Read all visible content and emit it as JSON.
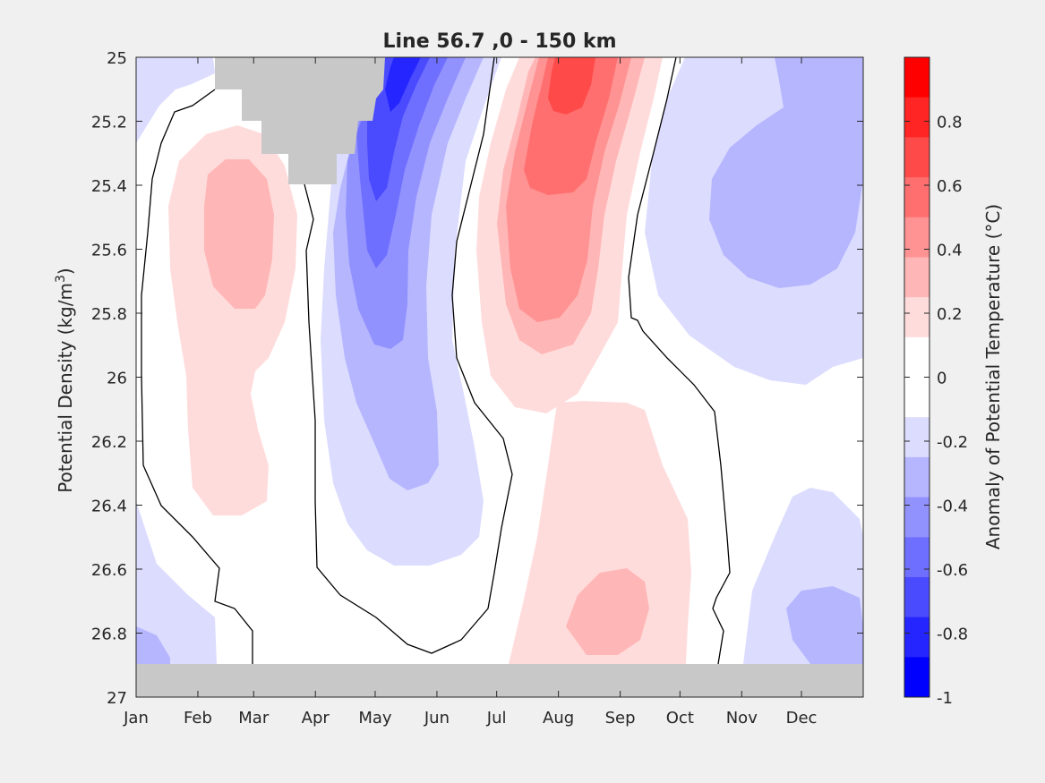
{
  "chart_data": {
    "type": "heatmap",
    "subtype": "filled-contour",
    "title": "Line 56.7 ,0 - 150 km",
    "ylabel_main": "Potential Density (kg/m",
    "ylabel_sup": "3",
    "ylabel_end": ")",
    "colorbar_label": "Anomaly of Potential Temperature (°C)",
    "x_ticks": [
      "Jan",
      "Feb",
      "Mar",
      "Apr",
      "May",
      "Jun",
      "Jul",
      "Aug",
      "Sep",
      "Oct",
      "Nov",
      "Dec"
    ],
    "y_ticks": [
      "25",
      "25.2",
      "25.4",
      "25.6",
      "25.8",
      "26",
      "26.2",
      "26.4",
      "26.6",
      "26.8",
      "27"
    ],
    "ylim": [
      25,
      27
    ],
    "y_reversed": true,
    "x_range_months": [
      0,
      12
    ],
    "colorbar_ticks": [
      "0.8",
      "0.6",
      "0.4",
      "0.2",
      "0",
      "-0.2",
      "-0.4",
      "-0.6",
      "-0.8",
      "-1"
    ],
    "colorbar_range": [
      -1,
      1
    ],
    "colorbar_levels": [
      "#ff0000",
      "#ff2525",
      "#ff4a4a",
      "#ff6f6f",
      "#ff9292",
      "#ffb6b6",
      "#ffdcdc",
      "#ffffff",
      "#ffffff",
      "#dcdcff",
      "#b6b6ff",
      "#9292ff",
      "#6f6fff",
      "#4a4aff",
      "#2525ff",
      "#0000ff"
    ],
    "missing_color": "#c8c8c8",
    "zero_contour_color": "#000000"
  }
}
